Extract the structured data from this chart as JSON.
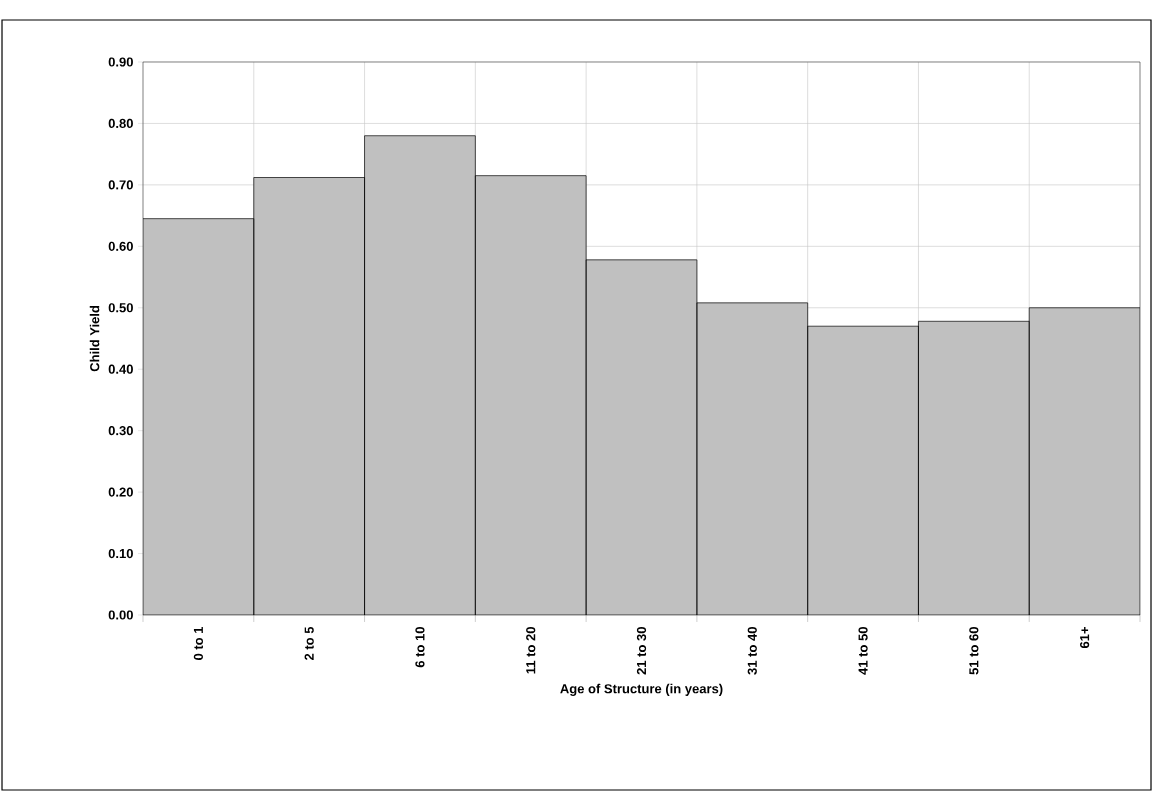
{
  "chart_data": {
    "type": "bar",
    "xlabel": "Age of Structure (in years)",
    "ylabel": "Child Yield",
    "categories": [
      "0 to 1",
      "2 to 5",
      "6 to 10",
      "11 to 20",
      "21 to 30",
      "31 to 40",
      "41 to 50",
      "51 to 60",
      "61+"
    ],
    "values": [
      0.645,
      0.712,
      0.78,
      0.715,
      0.578,
      0.508,
      0.47,
      0.478,
      0.5
    ],
    "color": "#c0c0c0",
    "ylim": [
      0,
      0.9
    ],
    "yticks": [
      {
        "value": 0,
        "label": "0.00"
      },
      {
        "value": 0.1,
        "label": "0.10"
      },
      {
        "value": 0.2,
        "label": "0.20"
      },
      {
        "value": 0.3,
        "label": "0.30"
      },
      {
        "value": 0.4,
        "label": "0.40"
      },
      {
        "value": 0.5,
        "label": "0.50"
      },
      {
        "value": 0.6,
        "label": "0.60"
      },
      {
        "value": 0.7,
        "label": "0.70"
      },
      {
        "value": 0.8,
        "label": "0.80"
      },
      {
        "value": 0.9,
        "label": "0.90"
      }
    ],
    "grid": true
  }
}
